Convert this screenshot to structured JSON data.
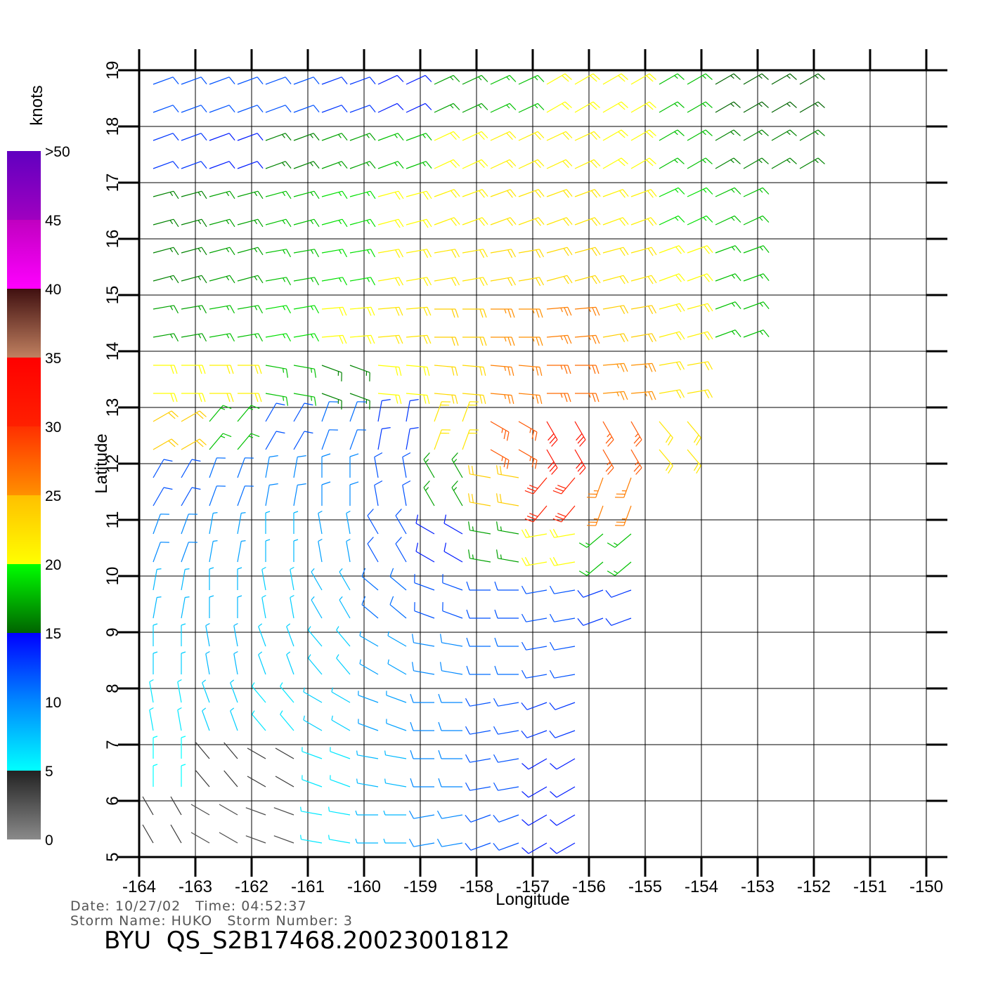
{
  "chart_data": {
    "type": "wind_barbs",
    "xlabel": "Longitude",
    "ylabel": "Latitude",
    "xlim": [
      -164,
      -150
    ],
    "ylim": [
      5,
      19
    ],
    "xticks": [
      -164,
      -163,
      -162,
      -161,
      -160,
      -159,
      -158,
      -157,
      -156,
      -155,
      -154,
      -153,
      -152,
      -151,
      -150
    ],
    "yticks": [
      5,
      6,
      7,
      8,
      9,
      10,
      11,
      12,
      13,
      14,
      15,
      16,
      17,
      18,
      19
    ],
    "grid": true,
    "colorbar": {
      "title": "knots",
      "lim": [
        0,
        50
      ],
      "ticks": [
        0,
        5,
        10,
        15,
        20,
        25,
        30,
        35,
        40,
        45,
        {
          "value": 50,
          "label": ">50"
        }
      ],
      "bands": [
        {
          "from": 0,
          "to": 5,
          "colors": [
            "#8a8a8a",
            "#222222"
          ]
        },
        {
          "from": 5,
          "to": 10,
          "colors": [
            "#00ffff",
            "#0088ff"
          ]
        },
        {
          "from": 10,
          "to": 15,
          "colors": [
            "#0088ff",
            "#0000ff"
          ]
        },
        {
          "from": 15,
          "to": 20,
          "colors": [
            "#006400",
            "#00ff00"
          ]
        },
        {
          "from": 20,
          "to": 25,
          "colors": [
            "#ffff00",
            "#ffc000"
          ]
        },
        {
          "from": 25,
          "to": 30,
          "colors": [
            "#ff9000",
            "#ff3000"
          ]
        },
        {
          "from": 30,
          "to": 35,
          "colors": [
            "#ff2000",
            "#ff0000"
          ]
        },
        {
          "from": 35,
          "to": 40,
          "colors": [
            "#c08060",
            "#401010"
          ]
        },
        {
          "from": 40,
          "to": 45,
          "colors": [
            "#ff00ff",
            "#c000c0"
          ]
        },
        {
          "from": 45,
          "to": 50,
          "colors": [
            "#a000c0",
            "#6000c0"
          ]
        }
      ]
    },
    "lons": [
      -163.5,
      -162.5,
      -161.5,
      -160.5,
      -159.5,
      -158.5,
      -157.5,
      -156.5,
      -155.5,
      -154.5,
      -153.5,
      -152.5
    ],
    "lats": [
      18.5,
      17.5,
      16.5,
      15.5,
      14.5,
      13.5,
      12.5,
      11.5,
      10.5,
      9.5,
      8.5,
      7.5,
      6.5,
      5.5
    ],
    "speed": [
      [
        12,
        12,
        12,
        13,
        14,
        17,
        18,
        20,
        20,
        18,
        15,
        15
      ],
      [
        13,
        14,
        16,
        17,
        18,
        20,
        21,
        21,
        20,
        18,
        16,
        16
      ],
      [
        16,
        17,
        18,
        19,
        20,
        21,
        22,
        22,
        21,
        19,
        18,
        null
      ],
      [
        16,
        17,
        18,
        19,
        21,
        22,
        23,
        23,
        22,
        20,
        18,
        null
      ],
      [
        17,
        18,
        19,
        20,
        22,
        24,
        25,
        26,
        24,
        21,
        18,
        null
      ],
      [
        20,
        21,
        18,
        16,
        20,
        23,
        26,
        27,
        25,
        22,
        null,
        null
      ],
      [
        24,
        18,
        12,
        11,
        13,
        22,
        28,
        32,
        28,
        22,
        null,
        null
      ],
      [
        12,
        11,
        10,
        10,
        12,
        17,
        24,
        30,
        26,
        null,
        null,
        null
      ],
      [
        10,
        9,
        8,
        9,
        12,
        14,
        17,
        20,
        18,
        null,
        null,
        null
      ],
      [
        8,
        8,
        7,
        8,
        11,
        12,
        12,
        12,
        13,
        null,
        null,
        null
      ],
      [
        7,
        8,
        7,
        7,
        9,
        10,
        11,
        12,
        null,
        null,
        null,
        null
      ],
      [
        6,
        7,
        6,
        7,
        9,
        10,
        12,
        13,
        null,
        null,
        null,
        null
      ],
      [
        5,
        4,
        4,
        6,
        8,
        10,
        12,
        14,
        null,
        null,
        null,
        null
      ],
      [
        4,
        3,
        3,
        6,
        8,
        10,
        12,
        14,
        null,
        null,
        null,
        null
      ]
    ],
    "direction": [
      [
        70,
        70,
        70,
        70,
        65,
        65,
        65,
        60,
        60,
        60,
        60,
        60
      ],
      [
        70,
        70,
        70,
        70,
        70,
        65,
        65,
        65,
        60,
        60,
        60,
        60
      ],
      [
        75,
        75,
        75,
        75,
        75,
        70,
        70,
        70,
        70,
        65,
        65,
        null
      ],
      [
        75,
        75,
        80,
        80,
        80,
        80,
        80,
        75,
        75,
        70,
        70,
        null
      ],
      [
        80,
        80,
        80,
        85,
        85,
        90,
        90,
        85,
        80,
        75,
        70,
        null
      ],
      [
        90,
        90,
        100,
        110,
        95,
        95,
        95,
        90,
        85,
        80,
        null,
        null
      ],
      [
        60,
        40,
        30,
        20,
        10,
        20,
        120,
        150,
        150,
        140,
        null,
        null
      ],
      [
        30,
        20,
        10,
        0,
        350,
        330,
        280,
        220,
        200,
        null,
        null,
        null
      ],
      [
        20,
        10,
        0,
        350,
        330,
        300,
        280,
        260,
        230,
        null,
        null,
        null
      ],
      [
        10,
        0,
        350,
        330,
        310,
        290,
        270,
        260,
        250,
        null,
        null,
        null
      ],
      [
        0,
        350,
        340,
        320,
        300,
        280,
        270,
        260,
        null,
        null,
        null,
        null
      ],
      [
        350,
        340,
        320,
        300,
        290,
        270,
        260,
        250,
        null,
        null,
        null,
        null
      ],
      [
        0,
        320,
        300,
        290,
        280,
        270,
        260,
        240,
        null,
        null,
        null,
        null
      ],
      [
        330,
        300,
        290,
        280,
        270,
        260,
        250,
        240,
        null,
        null,
        null,
        null
      ]
    ],
    "footer": {
      "line1": "Date: 10/27/02   Time: 04:52:37",
      "line2": "Storm Name: HUKO   Storm Number: 3",
      "title": "BYU  QS_S2B17468.20023001812"
    }
  }
}
